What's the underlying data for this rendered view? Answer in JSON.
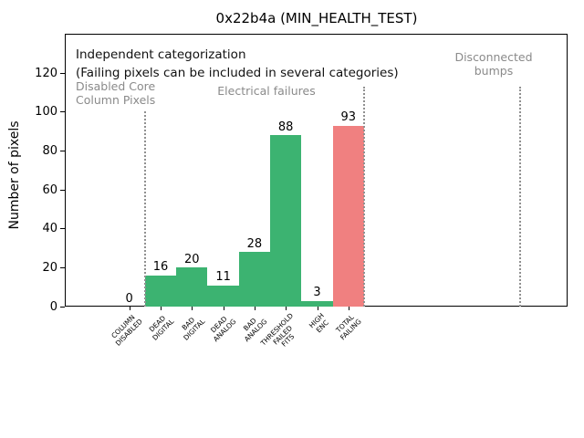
{
  "figure": {
    "title": "0x22b4a (MIN_HEALTH_TEST)",
    "ylabel": "Number of pixels"
  },
  "annotations": {
    "independent_title": "Independent categorization",
    "independent_subtitle": "(Failing pixels can be included in several categories)",
    "group_disabled": [
      "Disabled Core",
      "Column Pixels"
    ],
    "group_electrical": "Electrical failures",
    "group_disconnected": [
      "Disconnected",
      "bumps"
    ]
  },
  "colors": {
    "pass_green": "#3cb371",
    "fail_red": "#f08080",
    "annotation_gray": "#8a8a8a",
    "separator_gray": "#909090",
    "axis_black": "#000000"
  },
  "chart_data": {
    "type": "bar",
    "title": "0x22b4a (MIN_HEALTH_TEST)",
    "xlabel": "",
    "ylabel": "Number of pixels",
    "categories": [
      [
        "COLUMN",
        "DISABLED"
      ],
      [
        "DEAD",
        "DIGITAL"
      ],
      [
        "BAD",
        "DIGITAL"
      ],
      [
        "DEAD",
        "ANALOG"
      ],
      [
        "BAD",
        "ANALOG"
      ],
      [
        "THRESHOLD",
        "FAILED",
        "FITS"
      ],
      [
        "HIGH",
        "ENC"
      ],
      [
        "TOTAL",
        "FAILING"
      ]
    ],
    "values": [
      0,
      16,
      20,
      11,
      28,
      88,
      3,
      93
    ],
    "value_labels": [
      "0",
      "16",
      "20",
      "11",
      "28",
      "88",
      "3",
      "93"
    ],
    "bar_colors": [
      "#3cb371",
      "#3cb371",
      "#3cb371",
      "#3cb371",
      "#3cb371",
      "#3cb371",
      "#3cb371",
      "#f08080"
    ],
    "yticks": [
      0,
      20,
      40,
      60,
      80,
      100,
      120
    ],
    "ylim": [
      0,
      140
    ],
    "grid": false,
    "legend": null,
    "separators_x_category": [
      0.5,
      7.5,
      12.5
    ],
    "region_labels": [
      "Disabled Core\nColumn Pixels",
      "Electrical failures",
      "Disconnected\nbumps"
    ]
  }
}
